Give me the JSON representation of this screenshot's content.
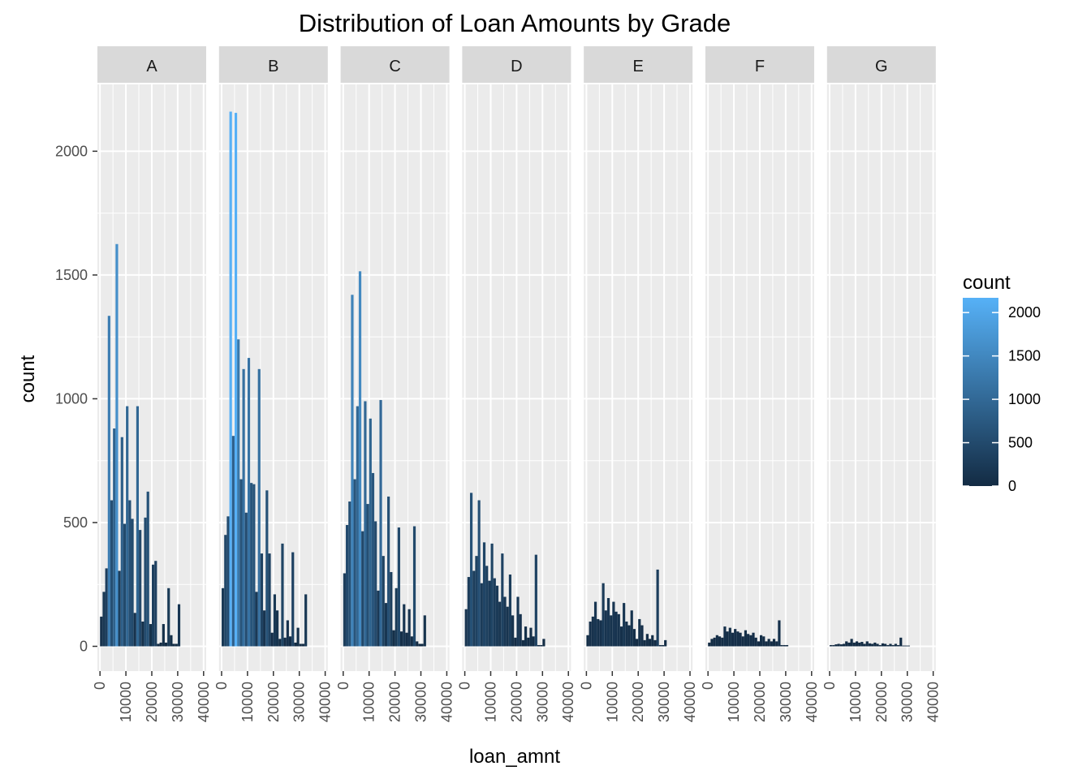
{
  "chart_data": {
    "type": "bar",
    "title": "Distribution of Loan Amounts by Grade",
    "xlabel": "loan_amnt",
    "ylabel": "count",
    "xlim": [
      -1000,
      41000
    ],
    "ylim": [
      -100,
      2270
    ],
    "x_ticks": [
      0,
      10000,
      20000,
      30000,
      40000
    ],
    "y_ticks": [
      0,
      500,
      1000,
      1500,
      2000
    ],
    "grid": true,
    "legend": {
      "title": "count",
      "placement": "right",
      "ticks": [
        0,
        500,
        1000,
        1500,
        2000
      ],
      "color_low": "#132B43",
      "color_high": "#56B1F7",
      "range": [
        0,
        2170
      ]
    },
    "bin_width": 1000,
    "bin_centers": [
      500,
      1500,
      2500,
      3500,
      4500,
      5500,
      6500,
      7500,
      8500,
      9500,
      10500,
      11500,
      12500,
      13500,
      14500,
      15500,
      16500,
      17500,
      18500,
      19500,
      20500,
      21500,
      22500,
      23500,
      24500,
      25500,
      26500,
      27500,
      28500,
      29500,
      30500,
      31500,
      32500,
      33500,
      34500,
      35500,
      36500,
      37500,
      38500,
      39500
    ],
    "facets": [
      {
        "label": "A",
        "values": [
          120,
          220,
          315,
          1335,
          590,
          880,
          1625,
          305,
          845,
          495,
          970,
          590,
          515,
          135,
          970,
          470,
          100,
          520,
          625,
          90,
          330,
          345,
          10,
          15,
          90,
          15,
          235,
          45,
          10,
          10,
          170,
          0,
          0,
          0,
          0,
          0,
          0,
          0,
          0,
          0
        ]
      },
      {
        "label": "B",
        "values": [
          235,
          450,
          525,
          2160,
          850,
          2155,
          1240,
          675,
          1120,
          540,
          1165,
          660,
          655,
          220,
          1120,
          375,
          145,
          630,
          375,
          55,
          210,
          145,
          30,
          415,
          35,
          105,
          40,
          380,
          15,
          75,
          10,
          10,
          210,
          0,
          0,
          0,
          0,
          0,
          0,
          0
        ]
      },
      {
        "label": "C",
        "values": [
          295,
          490,
          585,
          1420,
          675,
          970,
          1515,
          465,
          990,
          575,
          920,
          700,
          505,
          225,
          995,
          365,
          175,
          605,
          300,
          65,
          235,
          480,
          60,
          170,
          55,
          150,
          40,
          485,
          20,
          10,
          10,
          125,
          0,
          0,
          0,
          0,
          0,
          0,
          0,
          0
        ]
      },
      {
        "label": "D",
        "values": [
          150,
          280,
          620,
          305,
          365,
          590,
          255,
          420,
          325,
          265,
          415,
          275,
          245,
          180,
          375,
          200,
          160,
          290,
          125,
          35,
          200,
          130,
          25,
          80,
          35,
          75,
          40,
          370,
          5,
          5,
          30,
          0,
          0,
          0,
          0,
          0,
          0,
          0,
          0,
          0
        ]
      },
      {
        "label": "E",
        "values": [
          45,
          100,
          120,
          180,
          110,
          105,
          255,
          145,
          195,
          125,
          180,
          140,
          130,
          80,
          175,
          100,
          85,
          145,
          70,
          30,
          110,
          85,
          25,
          50,
          30,
          45,
          25,
          310,
          5,
          5,
          25,
          0,
          0,
          0,
          0,
          0,
          0,
          0,
          0,
          0
        ]
      },
      {
        "label": "F",
        "values": [
          15,
          30,
          35,
          45,
          40,
          35,
          80,
          60,
          75,
          55,
          70,
          60,
          55,
          40,
          65,
          50,
          45,
          55,
          35,
          20,
          45,
          40,
          20,
          30,
          20,
          30,
          20,
          105,
          5,
          5,
          5,
          0,
          0,
          0,
          0,
          0,
          0,
          0,
          0,
          0
        ]
      },
      {
        "label": "G",
        "values": [
          5,
          5,
          8,
          10,
          8,
          10,
          20,
          15,
          30,
          15,
          20,
          15,
          18,
          10,
          20,
          12,
          10,
          15,
          10,
          5,
          12,
          10,
          5,
          10,
          5,
          10,
          5,
          35,
          3,
          3,
          3,
          0,
          0,
          0,
          0,
          0,
          0,
          0,
          0,
          0
        ]
      }
    ]
  }
}
